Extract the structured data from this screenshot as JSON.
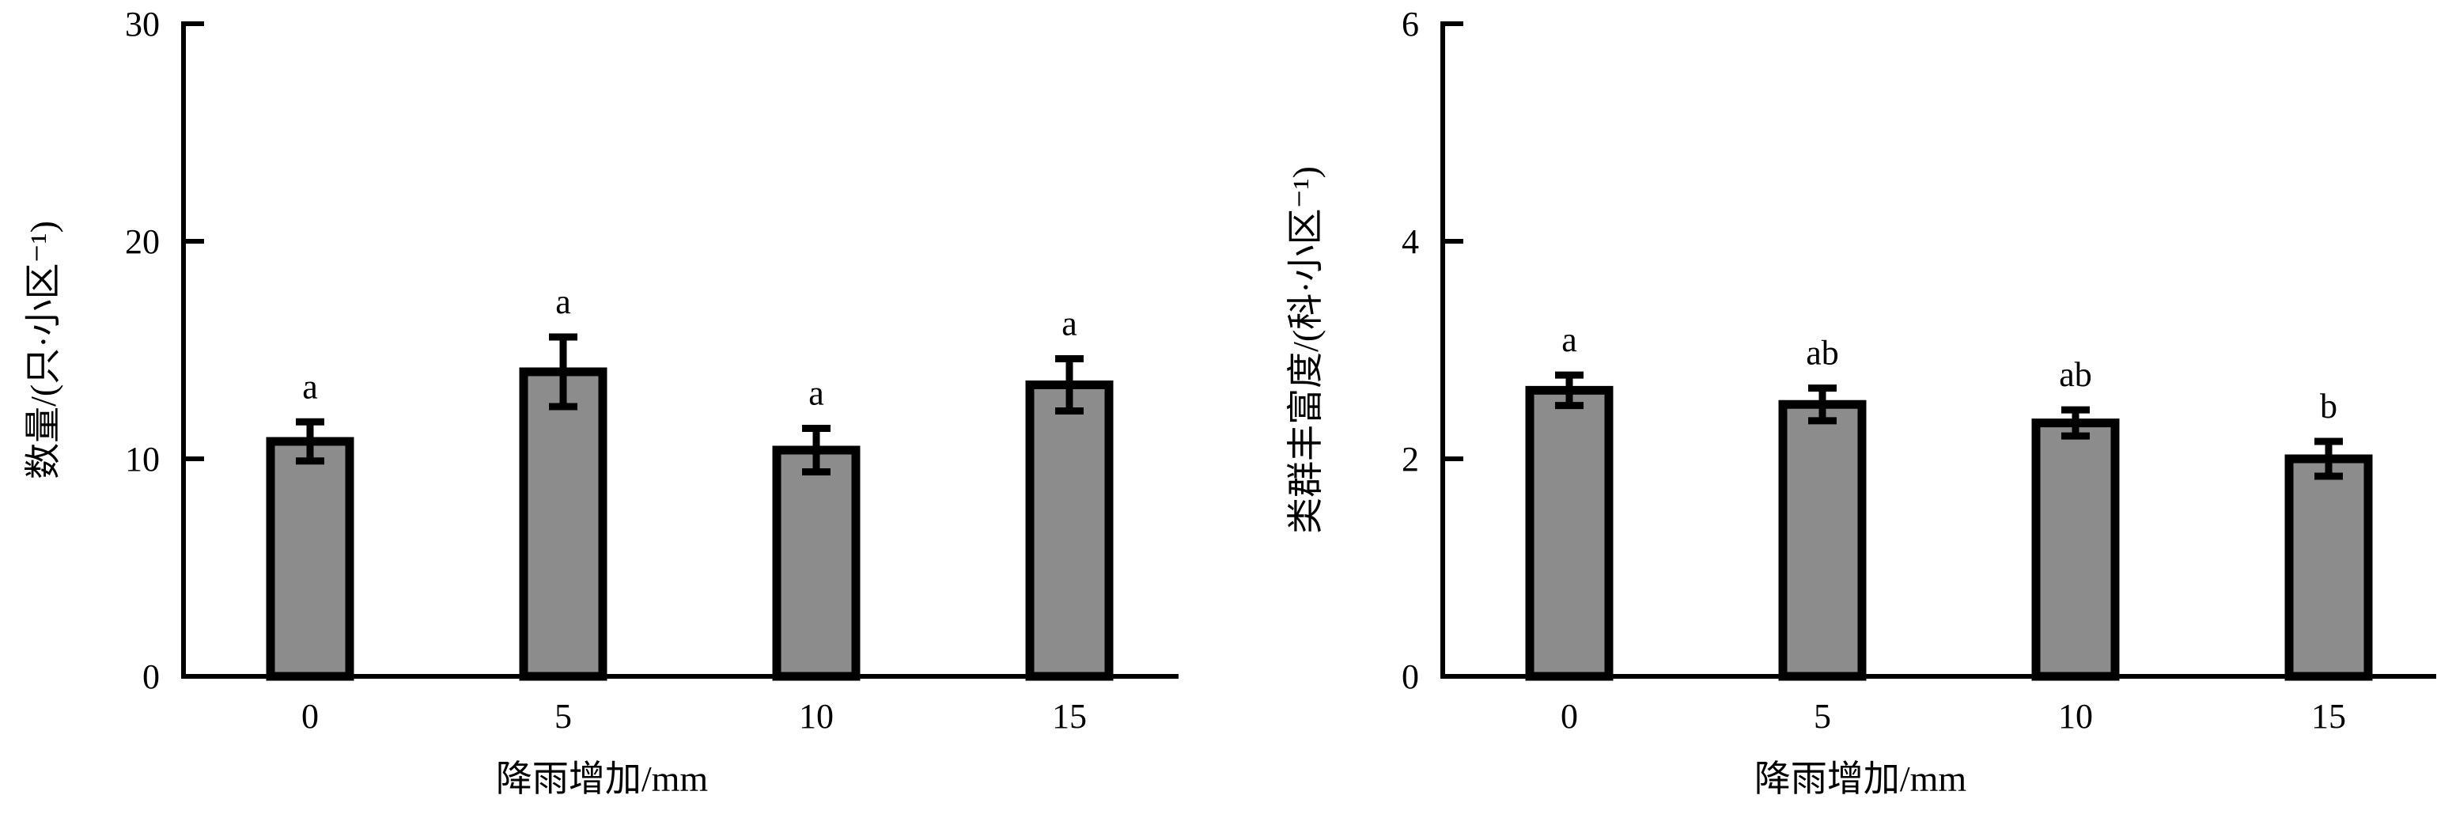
{
  "chart_data": [
    {
      "type": "bar",
      "categories": [
        "0",
        "5",
        "10",
        "15"
      ],
      "values": [
        10.8,
        14.0,
        10.4,
        13.4
      ],
      "errors": [
        0.9,
        1.6,
        1.0,
        1.2
      ],
      "significance": [
        "a",
        "a",
        "a",
        "a"
      ],
      "xlabel": "降雨增加/mm",
      "ylabel": "数量/(只·小区⁻¹)",
      "ylim": [
        0,
        30
      ],
      "yticks": [
        0,
        10,
        20,
        30
      ],
      "grid": false,
      "colors": {
        "bar_fill": "#8c8c8c",
        "bar_stroke": "#000000"
      }
    },
    {
      "type": "bar",
      "categories": [
        "0",
        "5",
        "10",
        "15"
      ],
      "values": [
        2.63,
        2.5,
        2.33,
        2.0
      ],
      "errors": [
        0.14,
        0.15,
        0.12,
        0.16
      ],
      "significance": [
        "a",
        "ab",
        "ab",
        "b"
      ],
      "xlabel": "降雨增加/mm",
      "ylabel": "类群丰富度/(科·小区⁻¹)",
      "ylim": [
        0,
        6
      ],
      "yticks": [
        0,
        2,
        4,
        6
      ],
      "grid": false,
      "colors": {
        "bar_fill": "#8c8c8c",
        "bar_stroke": "#000000"
      }
    }
  ]
}
